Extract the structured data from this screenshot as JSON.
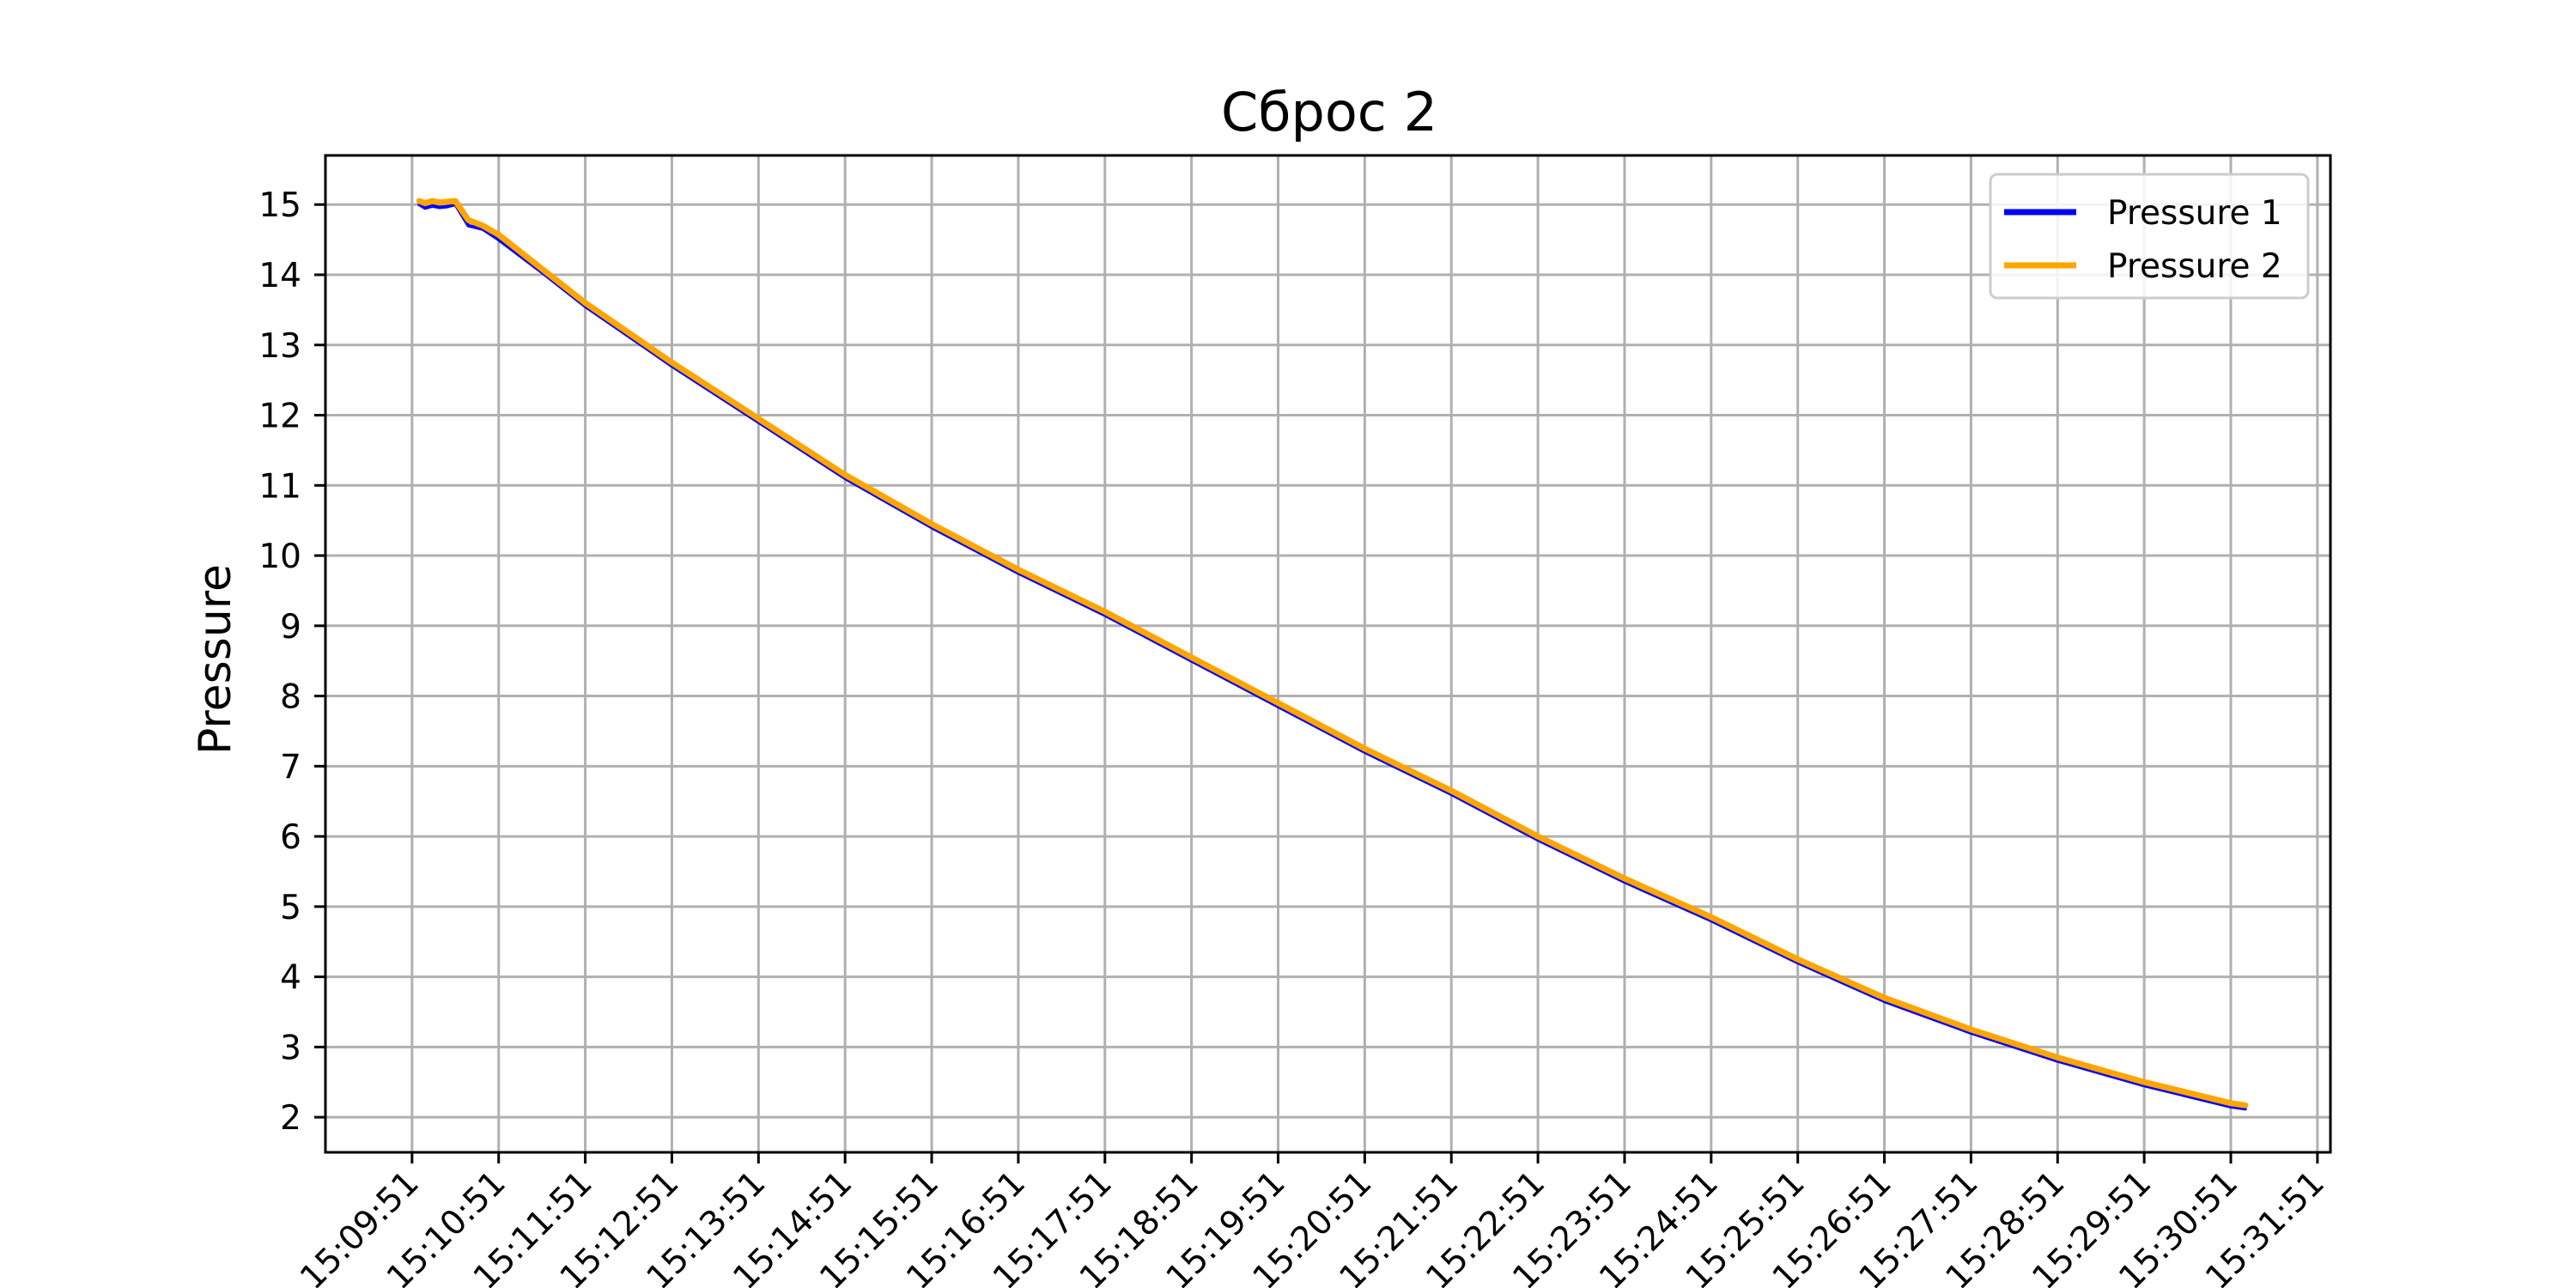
{
  "chart_data": {
    "type": "line",
    "title": "Сброс 2",
    "xlabel": "",
    "ylabel": "Pressure",
    "x_ticks": [
      "15:09:51",
      "15:10:51",
      "15:11:51",
      "15:12:51",
      "15:13:51",
      "15:14:51",
      "15:15:51",
      "15:16:51",
      "15:17:51",
      "15:18:51",
      "15:19:51",
      "15:20:51",
      "15:21:51",
      "15:22:51",
      "15:23:51",
      "15:24:51",
      "15:25:51",
      "15:26:51",
      "15:27:51",
      "15:28:51",
      "15:29:51",
      "15:30:51",
      "15:31:51"
    ],
    "y_ticks": [
      2,
      3,
      4,
      5,
      6,
      7,
      8,
      9,
      10,
      11,
      12,
      13,
      14,
      15
    ],
    "xlim": [
      "15:08:51",
      "15:32:00"
    ],
    "ylim": [
      1.5,
      15.7
    ],
    "grid": true,
    "legend_position": "top-right",
    "series": [
      {
        "name": "Pressure 1",
        "color": "#0000ff",
        "x": [
          "15:09:56",
          "15:10:00",
          "15:10:05",
          "15:10:10",
          "15:10:15",
          "15:10:21",
          "15:10:30",
          "15:10:40",
          "15:10:51",
          "15:11:20",
          "15:11:51",
          "15:12:51",
          "15:13:51",
          "15:14:51",
          "15:15:51",
          "15:16:51",
          "15:17:51",
          "15:18:51",
          "15:19:51",
          "15:20:51",
          "15:21:51",
          "15:22:51",
          "15:23:51",
          "15:24:51",
          "15:25:51",
          "15:26:51",
          "15:27:51",
          "15:28:51",
          "15:29:51",
          "15:30:51",
          "15:31:01"
        ],
        "y": [
          15.0,
          14.95,
          14.98,
          14.96,
          14.97,
          15.0,
          14.7,
          14.65,
          14.5,
          14.05,
          13.55,
          12.7,
          11.9,
          11.1,
          10.4,
          9.75,
          9.15,
          8.5,
          7.85,
          7.2,
          6.6,
          5.95,
          5.35,
          4.8,
          4.2,
          3.65,
          3.2,
          2.8,
          2.45,
          2.15,
          2.12
        ]
      },
      {
        "name": "Pressure 2",
        "color": "#ffa500",
        "x": [
          "15:09:56",
          "15:10:00",
          "15:10:05",
          "15:10:10",
          "15:10:15",
          "15:10:21",
          "15:10:30",
          "15:10:40",
          "15:10:51",
          "15:11:20",
          "15:11:51",
          "15:12:51",
          "15:13:51",
          "15:14:51",
          "15:15:51",
          "15:16:51",
          "15:17:51",
          "15:18:51",
          "15:19:51",
          "15:20:51",
          "15:21:51",
          "15:22:51",
          "15:23:51",
          "15:24:51",
          "15:25:51",
          "15:26:51",
          "15:27:51",
          "15:28:51",
          "15:29:51",
          "15:30:51",
          "15:31:01"
        ],
        "y": [
          15.05,
          15.02,
          15.05,
          15.03,
          15.04,
          15.05,
          14.78,
          14.7,
          14.57,
          14.1,
          13.6,
          12.75,
          11.95,
          11.15,
          10.45,
          9.8,
          9.2,
          8.55,
          7.9,
          7.25,
          6.65,
          6.0,
          5.4,
          4.85,
          4.25,
          3.7,
          3.25,
          2.85,
          2.5,
          2.2,
          2.17
        ]
      }
    ]
  }
}
